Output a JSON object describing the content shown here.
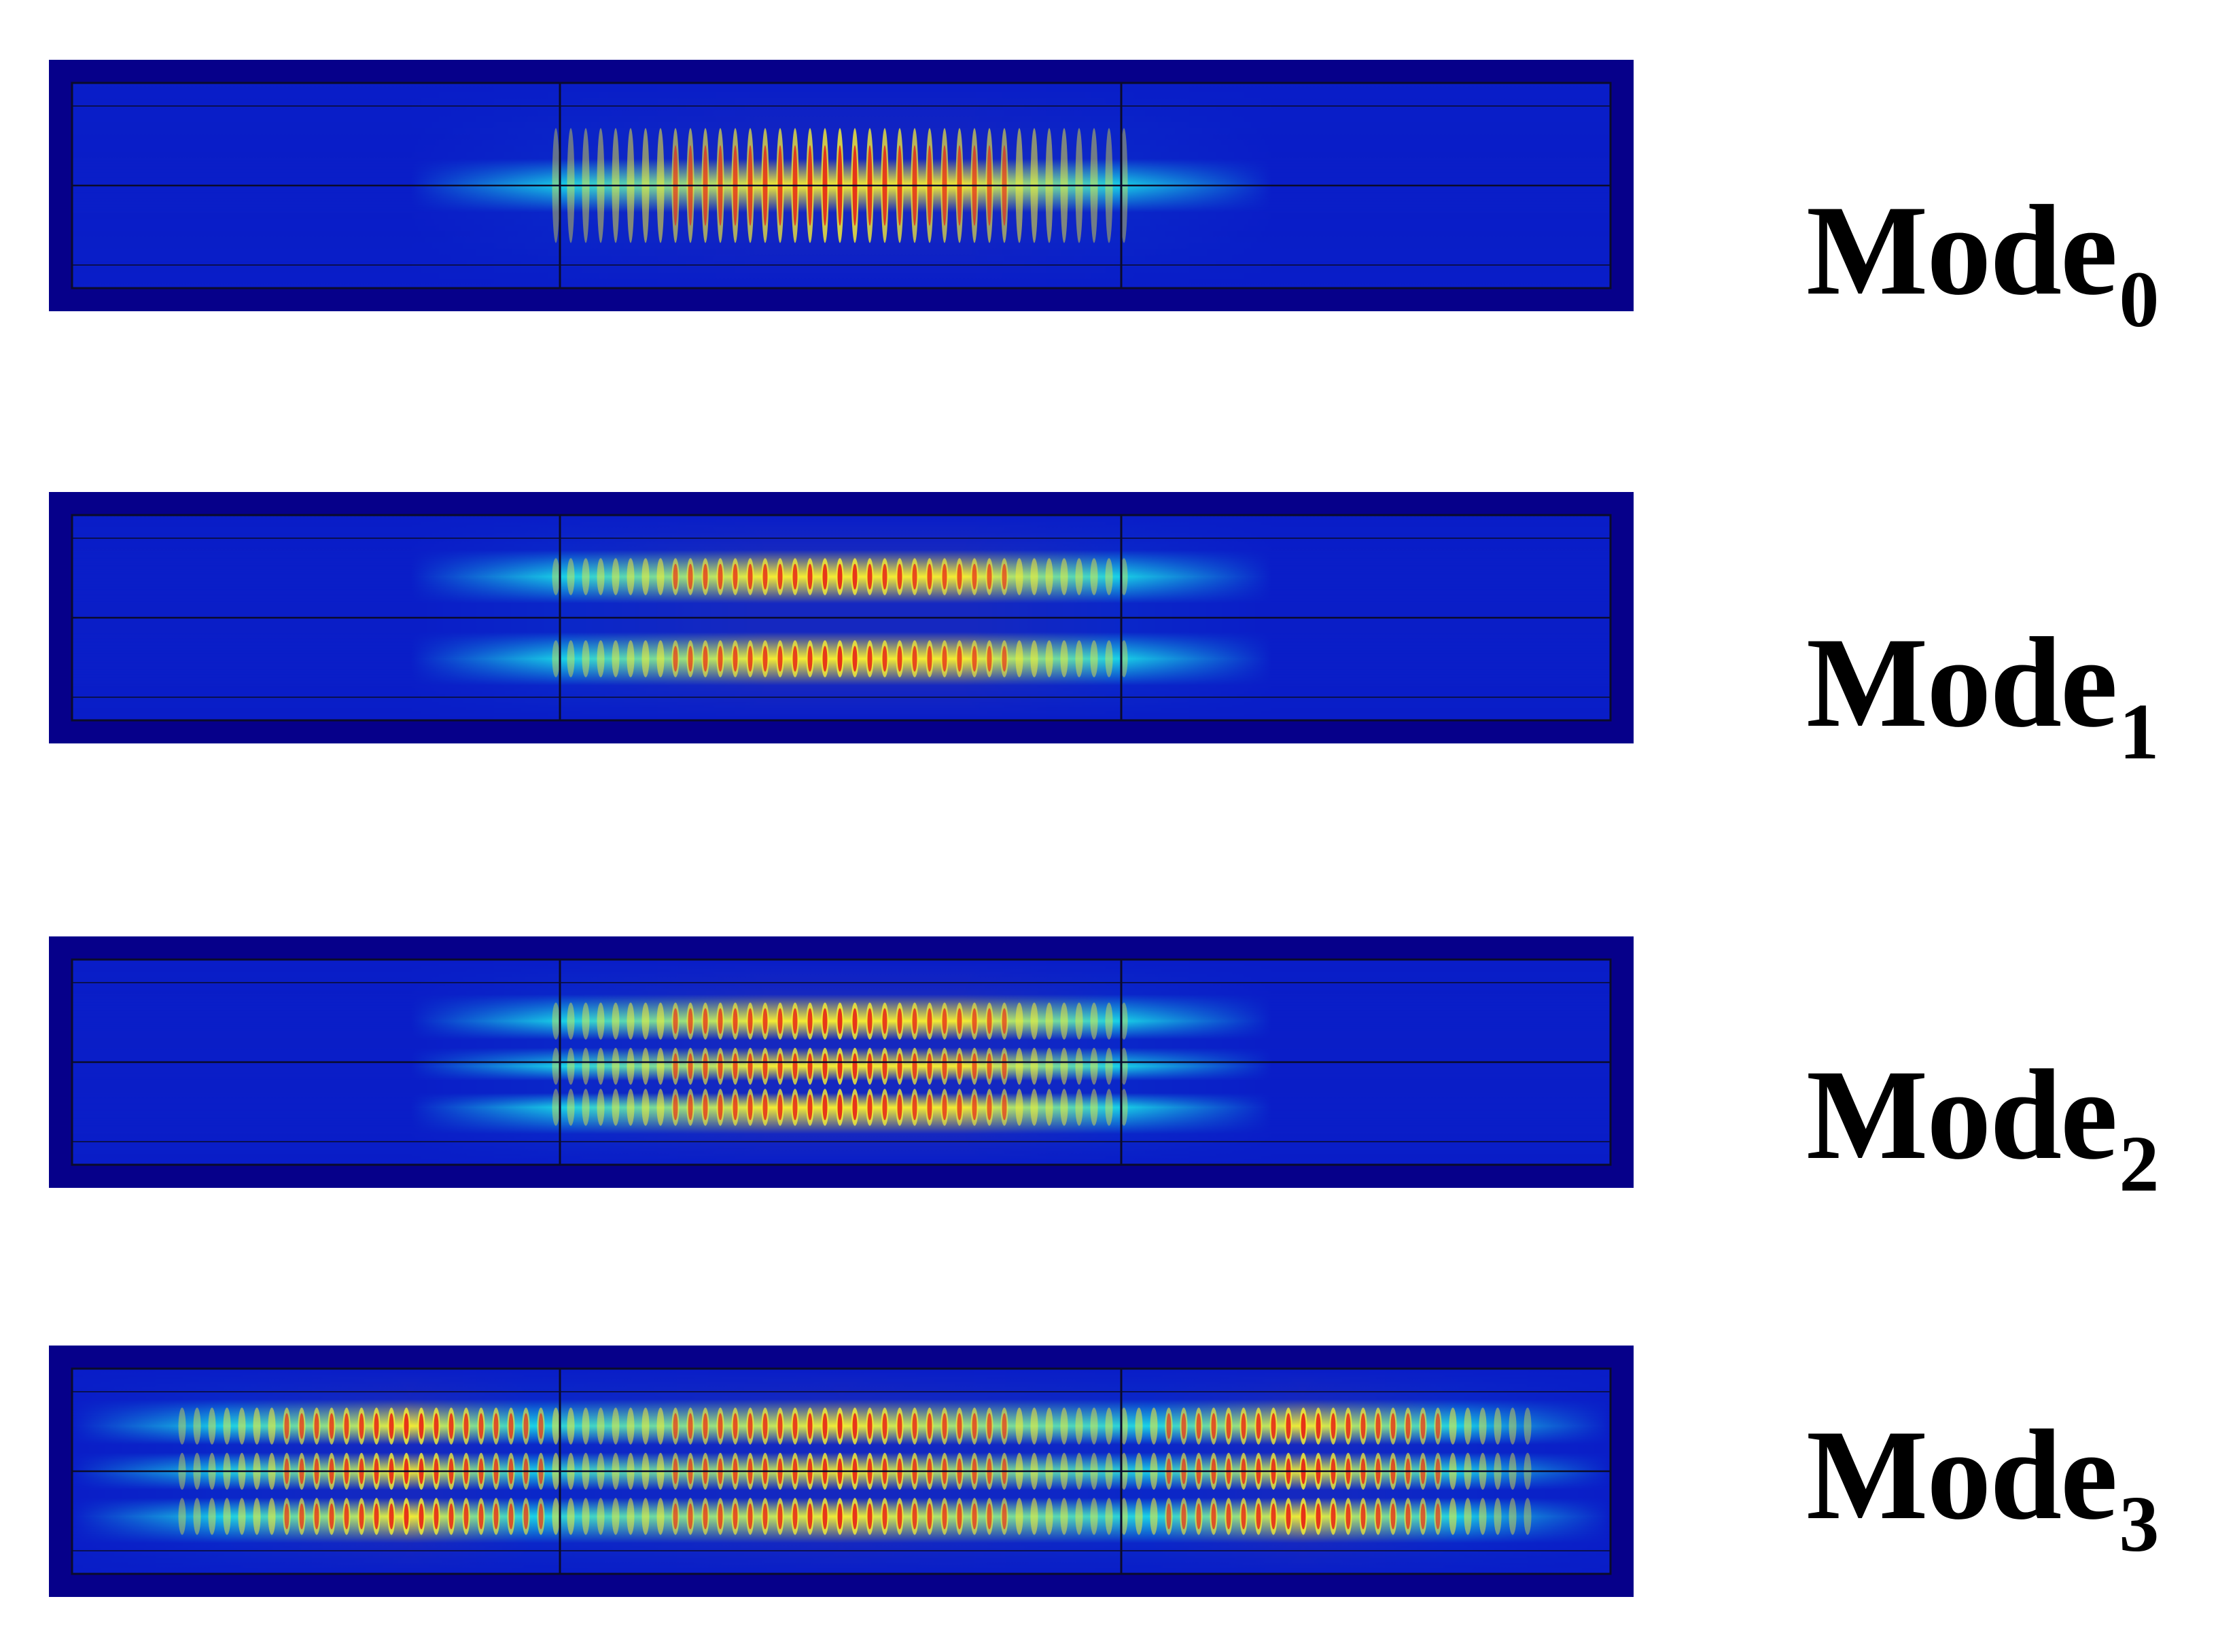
{
  "colors": {
    "background": "#ffffff",
    "frame": "#06008a",
    "field_low": "#0a1ec8",
    "field_mid": "#19d2e6",
    "field_high": "#f5ec32",
    "field_peak": "#e61e14",
    "section_line": "#0b0b2a"
  },
  "modes": [
    {
      "label": "Mode",
      "subscript": "0",
      "pattern": "center-dominant"
    },
    {
      "label": "Mode",
      "subscript": "1",
      "pattern": "two-lobe"
    },
    {
      "label": "Mode",
      "subscript": "2",
      "pattern": "three-lobe"
    },
    {
      "label": "Mode",
      "subscript": "3",
      "pattern": "distributed"
    }
  ]
}
